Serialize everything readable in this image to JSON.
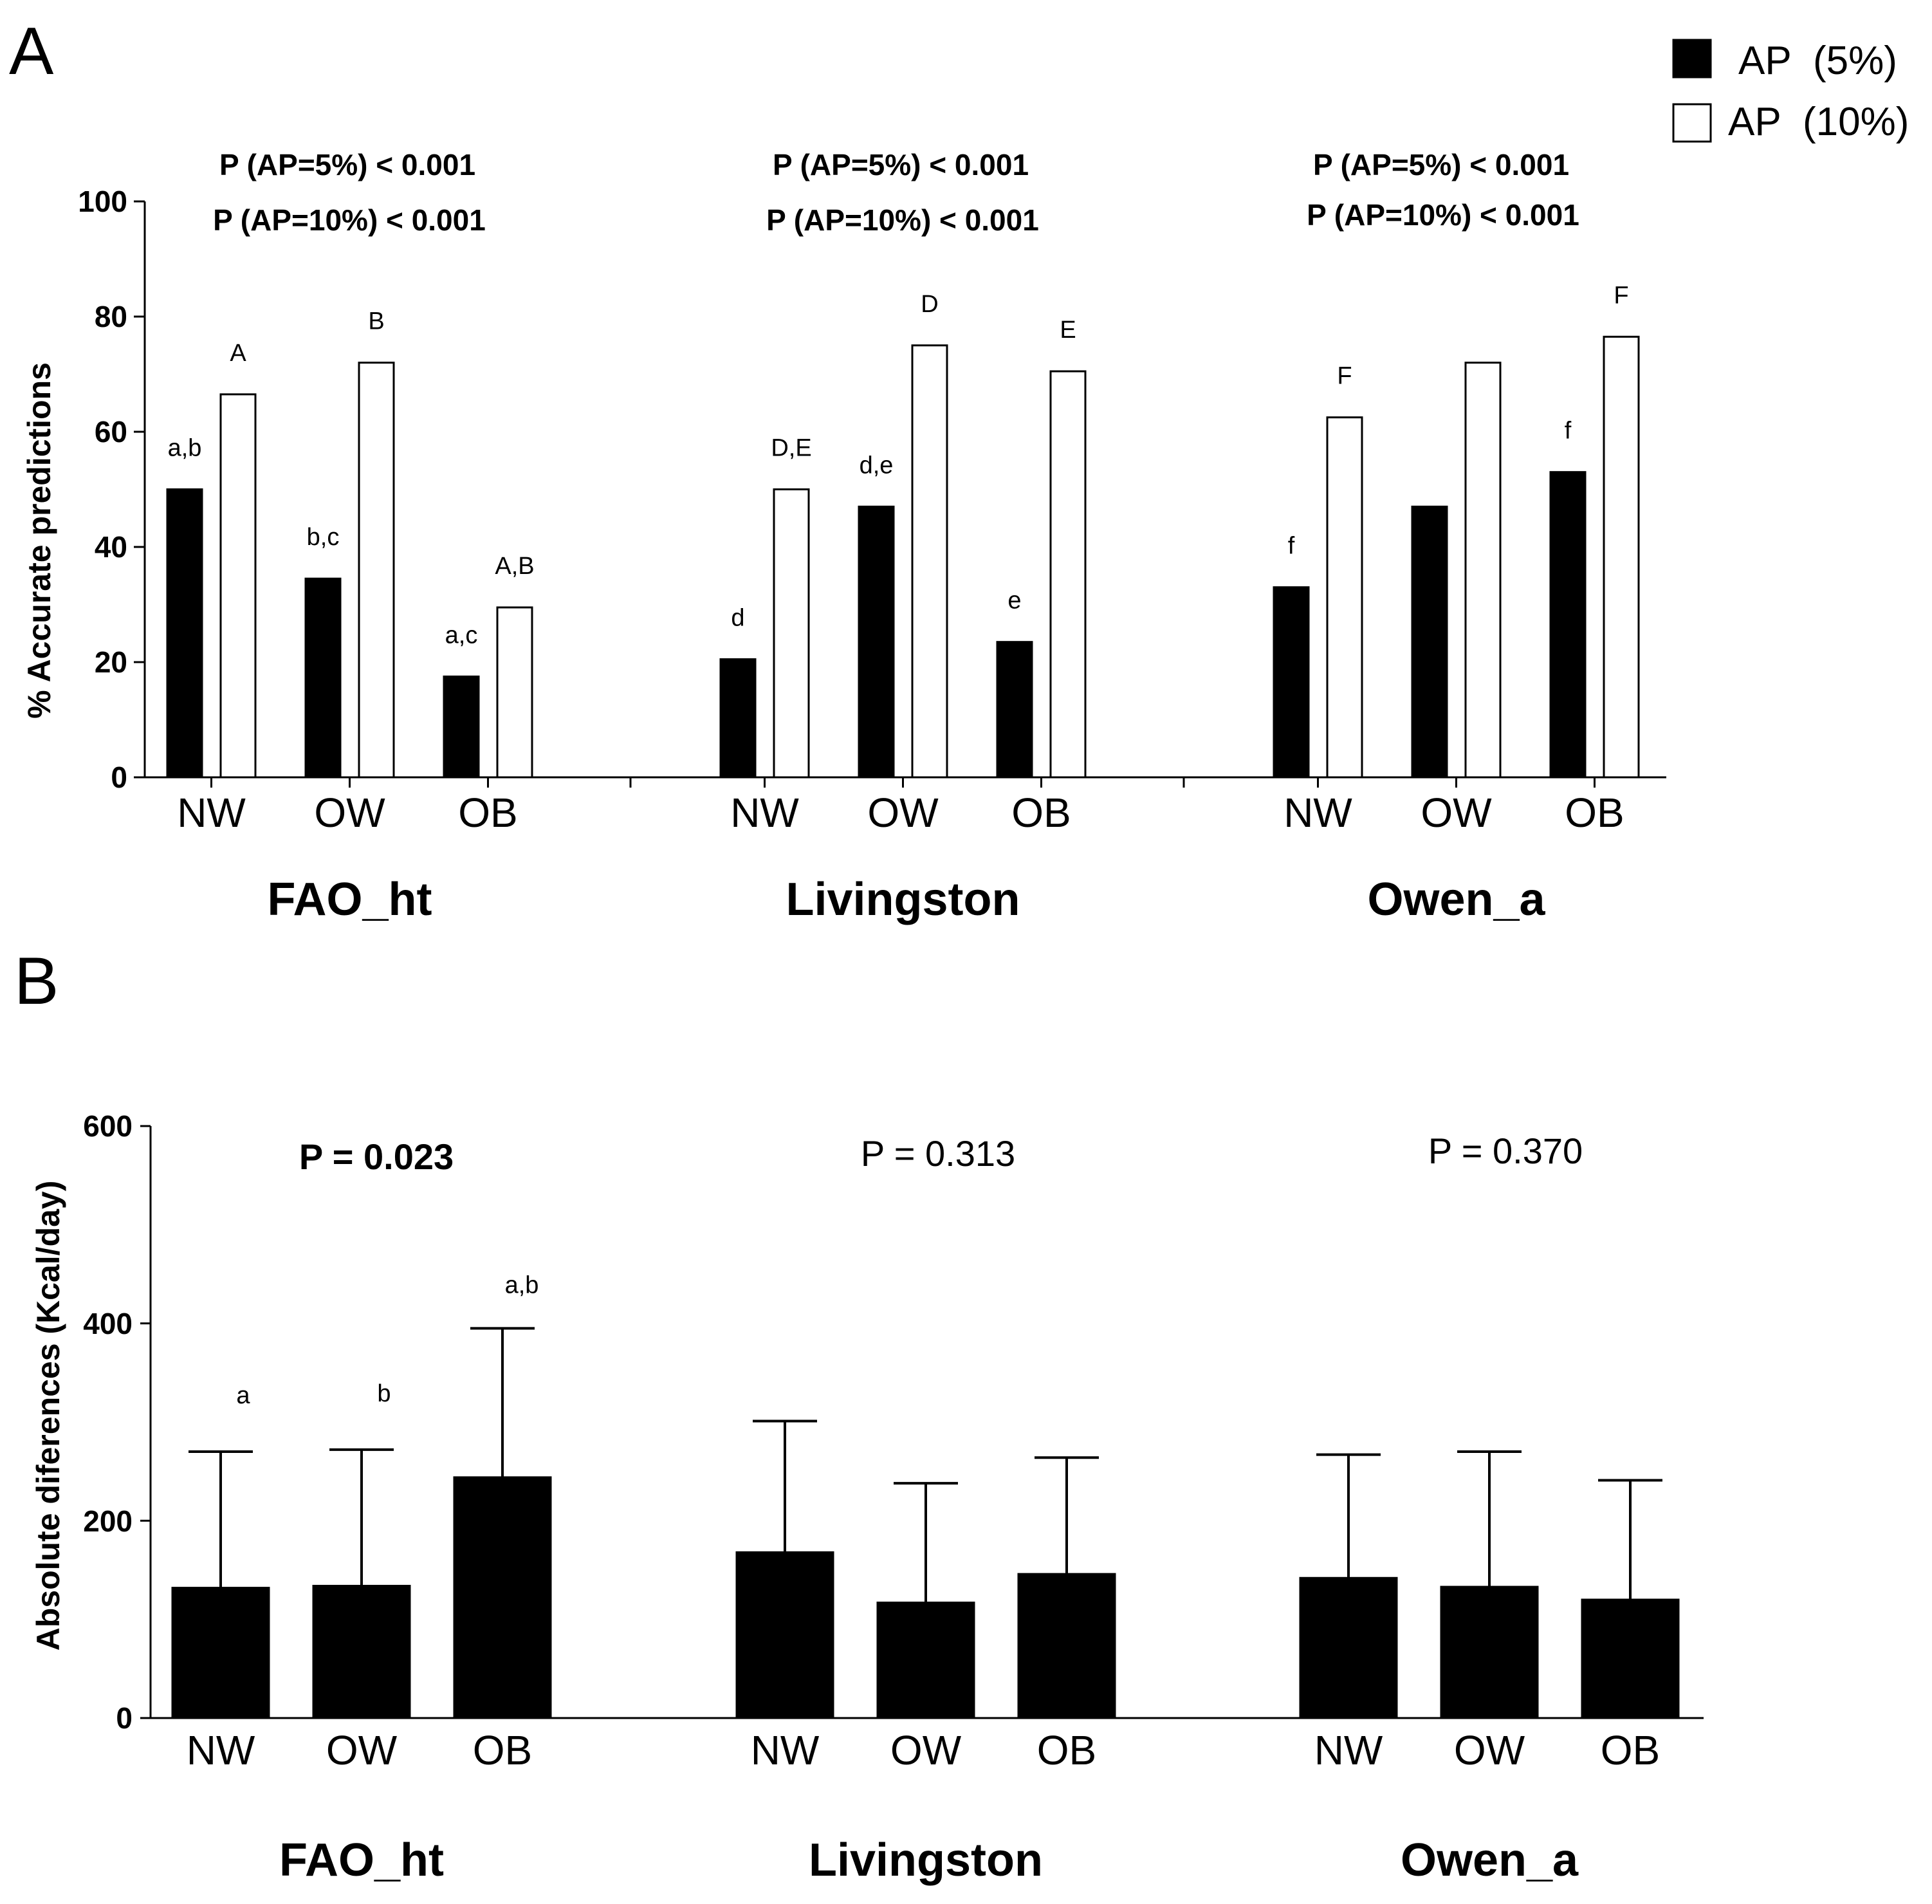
{
  "panels": [
    {
      "id": "A",
      "panel_label": "A",
      "legend": [
        {
          "label": "AP  (5%)",
          "fill": "#000000"
        },
        {
          "label": "AP  (10%)",
          "fill": "#ffffff"
        }
      ],
      "p_values": [
        {
          "group": "FAO_ht",
          "lines": [
            "P (AP=5%) < 0.001",
            "P (AP=10%) < 0.001"
          ]
        },
        {
          "group": "Livingston",
          "lines": [
            "P (AP=5%) < 0.001",
            "P (AP=10%) < 0.001"
          ]
        },
        {
          "group": "Owen_a",
          "lines": [
            "P (AP=5%) < 0.001",
            "P (AP=10%) < 0.001"
          ]
        }
      ]
    },
    {
      "id": "B",
      "panel_label": "B",
      "p_values": [
        {
          "group": "FAO_ht",
          "text": "P = 0.023",
          "bold": true
        },
        {
          "group": "Livingston",
          "text": "P = 0.313",
          "bold": false
        },
        {
          "group": "Owen_a",
          "text": "P = 0.370",
          "bold": false
        }
      ]
    }
  ],
  "chart_data": [
    {
      "type": "bar",
      "panel": "A",
      "title": "",
      "ylabel": "%  Accurate predictions",
      "xlabel": "",
      "ylim": [
        0,
        100
      ],
      "yticks": [
        "0",
        "20",
        "40",
        "60",
        "80",
        "100"
      ],
      "groups": [
        "FAO_ht",
        "Livingston",
        "Owen_a"
      ],
      "categories": [
        "NW",
        "OW",
        "OB"
      ],
      "series": [
        {
          "name": "AP  (5%)",
          "color": "#000000",
          "values": [
            [
              50,
              34.5,
              17.5
            ],
            [
              20.5,
              47,
              23.5
            ],
            [
              33,
              47,
              53
            ]
          ],
          "labels": [
            [
              "a,b",
              "b,c",
              "a,c"
            ],
            [
              "d",
              "d,e",
              "e"
            ],
            [
              "f",
              "",
              "f"
            ]
          ]
        },
        {
          "name": "AP  (10%)",
          "color": "#ffffff",
          "values": [
            [
              66.5,
              72,
              29.5
            ],
            [
              50,
              75,
              70.5
            ],
            [
              62.5,
              72,
              76.5
            ]
          ],
          "labels": [
            [
              "A",
              "B",
              "A,B"
            ],
            [
              "D,E",
              "D",
              "E"
            ],
            [
              "F",
              "",
              "F"
            ]
          ]
        }
      ]
    },
    {
      "type": "bar",
      "panel": "B",
      "title": "",
      "ylabel": "Absolute diferences (Kcal/day)",
      "xlabel": "",
      "ylim": [
        0,
        600
      ],
      "yticks": [
        "0",
        "200",
        "400",
        "600"
      ],
      "groups": [
        "FAO_ht",
        "Livingston",
        "Owen_a"
      ],
      "categories": [
        "NW",
        "OW",
        "OB"
      ],
      "series": [
        {
          "name": "Absolute differences",
          "color": "#000000",
          "values": [
            [
              132,
              134,
              244
            ],
            [
              168,
              117,
              146
            ],
            [
              142,
              133,
              120
            ]
          ],
          "error_upper": [
            [
              270,
              272,
              395
            ],
            [
              301,
              238,
              264
            ],
            [
              267,
              270,
              241
            ]
          ],
          "labels": [
            [
              "a",
              "b",
              "a,b"
            ],
            [
              "",
              "",
              ""
            ],
            [
              "",
              "",
              ""
            ]
          ]
        }
      ]
    }
  ]
}
